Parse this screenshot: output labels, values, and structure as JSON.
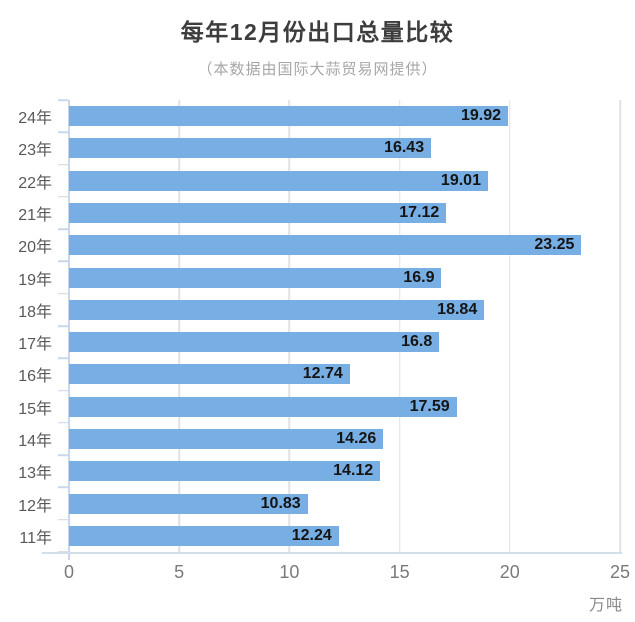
{
  "chart_data": {
    "type": "bar",
    "orientation": "horizontal",
    "title": "每年12月份出口总量比较",
    "subtitle": "（本数据由国际大蒜贸易网提供）",
    "unit_label": "万吨",
    "categories": [
      "24年",
      "23年",
      "22年",
      "21年",
      "20年",
      "19年",
      "18年",
      "17年",
      "16年",
      "15年",
      "14年",
      "13年",
      "12年",
      "11年"
    ],
    "values": [
      19.92,
      16.43,
      19.01,
      17.12,
      23.25,
      16.9,
      18.84,
      16.8,
      12.74,
      17.59,
      14.26,
      14.12,
      10.83,
      12.24
    ],
    "x_ticks": [
      0,
      5,
      10,
      15,
      20,
      25
    ],
    "xlim": [
      0,
      25
    ],
    "grid": true,
    "legend": "none",
    "colors": {
      "bar": "#77aee3",
      "value_label": "#151515",
      "title": "#3d3d3d",
      "subtitle": "#a6a6a6",
      "axis": "#c9d7e8",
      "gridline": "#e2e2e2",
      "y_tick_label": "#585858",
      "x_tick_label": "#7a7a7a"
    }
  }
}
